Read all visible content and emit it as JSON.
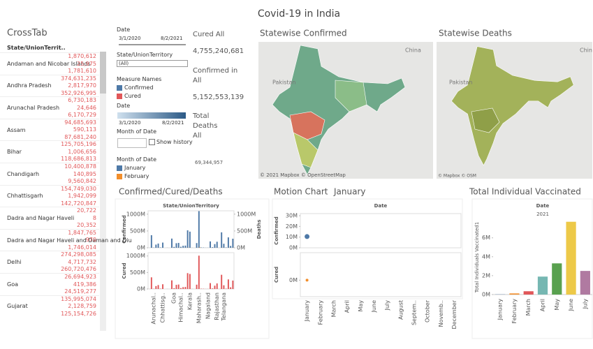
{
  "title": "Covid-19 in India",
  "crosstab": {
    "title": "CrossTab",
    "header": "State/UnionTerrit..",
    "rows": [
      {
        "name": "Andaman and Nicobar Islands",
        "values": [
          "1,870,612",
          "25,975",
          "1,781,610"
        ]
      },
      {
        "name": "Andhra Pradesh",
        "values": [
          "374,631,235",
          "2,817,970",
          "352,926,995"
        ]
      },
      {
        "name": "Arunachal Pradesh",
        "values": [
          "6,730,183",
          "24,646",
          "6,170,729"
        ]
      },
      {
        "name": "Assam",
        "values": [
          "94,685,693",
          "590,113",
          "87,681,240"
        ]
      },
      {
        "name": "Bihar",
        "values": [
          "125,705,196",
          "1,006,656",
          "118,686,813"
        ]
      },
      {
        "name": "Chandigarh",
        "values": [
          "10,400,878",
          "140,895",
          "9,560,842"
        ]
      },
      {
        "name": "Chhattisgarh",
        "values": [
          "154,749,030",
          "1,942,099",
          "142,720,847"
        ]
      },
      {
        "name": "Dadra and Nagar Haveli",
        "values": [
          "20,722",
          "8",
          "20,352"
        ]
      },
      {
        "name": "Dadra and Nagar Haveli and Daman and Diu",
        "values": [
          "1,847,765",
          "970",
          "1,746,014"
        ]
      },
      {
        "name": "Delhi",
        "values": [
          "274,298,085",
          "4,717,732",
          "260,720,476"
        ]
      },
      {
        "name": "Goa",
        "values": [
          "26,694,923",
          "419,386",
          "24,519,277"
        ]
      },
      {
        "name": "Gujarat",
        "values": [
          "135,995,074",
          "2,128,759",
          "125,154,726"
        ]
      }
    ]
  },
  "filters": {
    "date_title": "Date",
    "date_start": "3/1/2020",
    "date_end": "8/2/2021",
    "state_title": "State/UnionTerritory",
    "state_value": "(All)",
    "measure_title": "Measure Names",
    "date2_title": "Date",
    "date2_start": "3/1/2020",
    "date2_end": "8/2/2021",
    "month_title": "Month of Date",
    "show_history": "Show history",
    "month_legend_title": "Month of Date",
    "month_legend": [
      {
        "name": "January",
        "color": "#4e79a7"
      },
      {
        "name": "February",
        "color": "#f28e2b"
      }
    ]
  },
  "kpis": [
    {
      "label": "Cured All",
      "value": "4,755,240,681"
    },
    {
      "label": "Confirmed in All",
      "value": "5,152,553,139"
    },
    {
      "label": "Total Deaths All",
      "value": "69,344,957"
    }
  ],
  "maps": [
    {
      "title": "Statewise Confirmed",
      "west": "Pakistan",
      "east": "China",
      "credit": "© 2021 Mapbox © OpenStreetMap"
    },
    {
      "title": "Statewise Deaths",
      "west": "Pakistan",
      "east": "Chin",
      "credit": "© Mapbox © OSM"
    }
  ],
  "chart_data": [
    {
      "type": "bar",
      "title": "Confirmed/Cured/Deaths",
      "header": "State/UnionTerritory",
      "categories": [
        null,
        null,
        "Arunachal..",
        null,
        null,
        null,
        "Chhattisg..",
        null,
        null,
        null,
        null,
        "Goa",
        null,
        null,
        "Himachal..",
        null,
        null,
        null,
        "Kerala",
        null,
        null,
        null,
        "Maharash..",
        null,
        null,
        null,
        "Nagaland",
        null,
        null,
        null,
        "Rajasthan",
        null,
        null,
        "Telangana",
        null,
        null,
        null,
        null
      ],
      "panels": [
        {
          "ylim": [
            0,
            1100
          ],
          "yticks": [
            {
              "value": 0,
              "label": "0M"
            },
            {
              "value": 500,
              "label": "500M"
            },
            {
              "value": 1000,
              "label": "1000M"
            }
          ],
          "y2lim": [
            0,
            1100
          ],
          "y2ticks": [
            {
              "value": 0,
              "label": "0M"
            },
            {
              "value": 500,
              "label": "500M"
            },
            {
              "value": 1000,
              "label": "1000M"
            }
          ]
        },
        {
          "ylim": [
            0,
            1100
          ],
          "yticks": [
            {
              "value": 0,
              "label": "0M"
            },
            {
              "value": 500,
              "label": "500M"
            },
            {
              "value": 1000,
              "label": "1000M"
            }
          ]
        }
      ],
      "series": [
        {
          "name": "Confirmed",
          "color": "#4e79a7",
          "panel": 0,
          "values": [
            1.9,
            375,
            7,
            95,
            126,
            10,
            155,
            0,
            2,
            0,
            274,
            27,
            136,
            145,
            30,
            60,
            65,
            520,
            480,
            3,
            0.5,
            140,
            1090,
            10,
            8,
            3,
            4,
            190,
            18,
            110,
            180,
            2,
            460,
            120,
            12,
            310,
            55,
            270
          ]
        },
        {
          "name": "Deaths",
          "color": "#f28e2b",
          "panel": 0,
          "axis": "y2",
          "values": [
            0.03,
            2.8,
            0.02,
            0.6,
            1.0,
            0.14,
            1.9,
            0,
            0,
            0,
            4.7,
            0.42,
            2.1,
            1.7,
            0.5,
            0.8,
            0.9,
            6.8,
            2.0,
            0.03,
            0,
            2.0,
            25,
            0.15,
            0.1,
            0.01,
            0.05,
            1.0,
            0.3,
            3.3,
            1.8,
            0.03,
            6.5,
            0.7,
            0.15,
            4.5,
            1.1,
            4.9
          ]
        },
        {
          "name": "Cured",
          "color": "#e15759",
          "panel": 1,
          "values": [
            1.8,
            353,
            6.2,
            88,
            119,
            9.6,
            143,
            0,
            1.7,
            0,
            261,
            24.5,
            125,
            135,
            28,
            56,
            61,
            480,
            455,
            2.8,
            0.4,
            130,
            1010,
            9,
            7,
            2.7,
            3.5,
            178,
            17,
            100,
            168,
            1.8,
            430,
            112,
            11,
            290,
            51,
            255
          ]
        }
      ]
    },
    {
      "type": "scatter",
      "title": "Motion Chart",
      "subtitle": "January",
      "header": "Date",
      "categories": [
        "January",
        "February",
        "March",
        "April",
        "May",
        "June",
        "July",
        "August",
        "Septem..",
        "October",
        "Novemb..",
        "December"
      ],
      "panels": [
        {
          "ylim": [
            0,
            32
          ],
          "yticks": [
            {
              "value": 0,
              "label": "0M"
            },
            {
              "value": 10,
              "label": "10M"
            },
            {
              "value": 20,
              "label": "20M"
            },
            {
              "value": 30,
              "label": "30M"
            }
          ]
        },
        {
          "ylim": [
            -0.6,
            1
          ],
          "yticks": [
            {
              "value": 0,
              "label": "0M"
            }
          ]
        }
      ],
      "series": [
        {
          "name": "Confirmed",
          "color": "#4e79a7",
          "panel": 0,
          "values": [
            10.5,
            null,
            null,
            null,
            null,
            null,
            null,
            null,
            null,
            null,
            null,
            null
          ]
        },
        {
          "name": "Cured",
          "color": "#f28e2b",
          "panel": 1,
          "values": [
            0,
            null,
            null,
            null,
            null,
            null,
            null,
            null,
            null,
            null,
            null,
            null
          ]
        }
      ]
    },
    {
      "type": "bar",
      "title": "Total Individual Vaccinated",
      "header": "Date",
      "subheader": "2021",
      "ylabel": "Total Individuals Vaccinated1",
      "categories": [
        "January",
        "February",
        "March",
        "April",
        "May",
        "June",
        "July"
      ],
      "values": [
        0.02,
        0.12,
        0.35,
        1.9,
        3.3,
        7.7,
        2.5
      ],
      "colors": [
        "#4e79a7",
        "#f28e2b",
        "#e15759",
        "#76b7b2",
        "#59a14f",
        "#edc948",
        "#b07aa1"
      ],
      "ylim": [
        0,
        7.9
      ],
      "yticks": [
        {
          "value": 0,
          "label": "0M"
        },
        {
          "value": 2,
          "label": "2M"
        },
        {
          "value": 4,
          "label": "4M"
        },
        {
          "value": 6,
          "label": "6M"
        }
      ]
    }
  ]
}
